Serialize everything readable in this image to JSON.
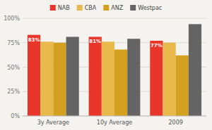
{
  "chart_data": {
    "type": "bar",
    "categories": [
      "3y Average",
      "10y Average",
      "2009"
    ],
    "series": [
      {
        "name": "NAB",
        "color": "#e8372a",
        "values": [
          83,
          81,
          77
        ],
        "data_labels": true,
        "value_labels": [
          "83%",
          "81%",
          "77%"
        ]
      },
      {
        "name": "CBA",
        "color": "#e8b84b",
        "values": [
          76,
          76,
          75
        ]
      },
      {
        "name": "ANZ",
        "color": "#d4a020",
        "values": [
          75,
          68,
          62
        ]
      },
      {
        "name": "Westpac",
        "color": "#646464",
        "values": [
          81,
          79,
          94
        ]
      }
    ],
    "ylim": [
      0,
      100
    ],
    "yticks": [
      {
        "value": 0,
        "label": "0%"
      },
      {
        "value": 25,
        "label": "25%"
      },
      {
        "value": 50,
        "label": "50%"
      },
      {
        "value": 75,
        "label": "75%"
      },
      {
        "value": 100,
        "label": "100%"
      }
    ],
    "grid": true,
    "legend": "top"
  }
}
